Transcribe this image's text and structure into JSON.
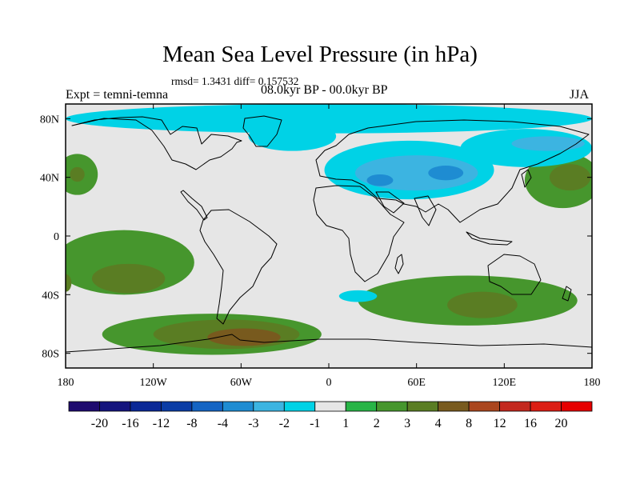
{
  "chart_data": {
    "type": "heatmap",
    "title": "Mean Sea Level Pressure (in hPa)",
    "subtitle": "rmsd= 1.3431 diff= 0.157532",
    "left_label": "Expt = temni-temna",
    "center_label": "08.0kyr BP - 00.0kyr BP",
    "right_label": "JJA",
    "x_ticks": [
      {
        "lon": -180,
        "label": "180"
      },
      {
        "lon": -120,
        "label": "120W"
      },
      {
        "lon": -60,
        "label": "60W"
      },
      {
        "lon": 0,
        "label": "0"
      },
      {
        "lon": 60,
        "label": "60E"
      },
      {
        "lon": 120,
        "label": "120E"
      },
      {
        "lon": 180,
        "label": "180"
      }
    ],
    "y_ticks": [
      {
        "lat": 80,
        "label": "80N"
      },
      {
        "lat": 40,
        "label": "40N"
      },
      {
        "lat": 0,
        "label": "0"
      },
      {
        "lat": -40,
        "label": "40S"
      },
      {
        "lat": -80,
        "label": "80S"
      }
    ],
    "xlim": [
      -180,
      180
    ],
    "ylim": [
      -90,
      90
    ],
    "colorbar": {
      "labels": [
        "-20",
        "-16",
        "-12",
        "-8",
        "-4",
        "-3",
        "-2",
        "-1",
        "1",
        "2",
        "3",
        "4",
        "8",
        "12",
        "16",
        "20"
      ],
      "colors": [
        "#1e0a6e",
        "#14147d",
        "#0a2896",
        "#0a3ca5",
        "#1464c3",
        "#1e8cd2",
        "#3cb4e1",
        "#00d2e6",
        "#e6e6e6",
        "#28b446",
        "#46962d",
        "#5a7d23",
        "#785a1e",
        "#aa461e",
        "#c3281e",
        "#dc1e14",
        "#e60000"
      ]
    },
    "regions": [
      {
        "name": "ne-pacific-high",
        "cls": 2,
        "lon": -172,
        "lat": 42,
        "rx": 14,
        "ry": 14
      },
      {
        "name": "ne-pacific-high-core",
        "cls": 3,
        "lon": -172,
        "lat": 42,
        "rx": 5,
        "ry": 5
      },
      {
        "name": "south-pacific-band",
        "cls": 2,
        "lon": -140,
        "lat": -18,
        "rx": 48,
        "ry": 22
      },
      {
        "name": "south-pacific-core",
        "cls": 3,
        "lon": -137,
        "lat": -29,
        "rx": 25,
        "ry": 10
      },
      {
        "name": "west-pacific-edge",
        "cls": 3,
        "lon": -180,
        "lat": -32,
        "rx": 4,
        "ry": 6
      },
      {
        "name": "southern-ocean-band",
        "cls": 2,
        "lon": -80,
        "lat": -67,
        "rx": 75,
        "ry": 14
      },
      {
        "name": "southern-ocean-core",
        "cls": 3,
        "lon": -70,
        "lat": -67,
        "rx": 50,
        "ry": 10
      },
      {
        "name": "southern-ocean-core-inner",
        "cls": 4,
        "lon": -58,
        "lat": -69,
        "rx": 25,
        "ry": 6
      },
      {
        "name": "indian-ocean-band",
        "cls": 2,
        "lon": 95,
        "lat": -44,
        "rx": 75,
        "ry": 17
      },
      {
        "name": "indian-ocean-core",
        "cls": 3,
        "lon": 105,
        "lat": -47,
        "rx": 24,
        "ry": 9
      },
      {
        "name": "west-pacific-high",
        "cls": 2,
        "lon": 160,
        "lat": 38,
        "rx": 26,
        "ry": 19
      },
      {
        "name": "west-pacific-high-core",
        "cls": 3,
        "lon": 165,
        "lat": 40,
        "rx": 14,
        "ry": 9
      },
      {
        "name": "arctic-low",
        "cls": -1,
        "lon": 0,
        "lat": 80,
        "rx": 180,
        "ry": 10
      },
      {
        "name": "north-atlantic-low",
        "cls": -1,
        "lon": -25,
        "lat": 68,
        "rx": 30,
        "ry": 10
      },
      {
        "name": "eurasia-low",
        "cls": -1,
        "lon": 55,
        "lat": 45,
        "rx": 58,
        "ry": 20
      },
      {
        "name": "eurasia-low-mid",
        "cls": -2,
        "lon": 60,
        "lat": 43,
        "rx": 42,
        "ry": 12
      },
      {
        "name": "eurasia-low-core",
        "cls": -3,
        "lon": 80,
        "lat": 43,
        "rx": 12,
        "ry": 5
      },
      {
        "name": "mediterranean-low-core",
        "cls": -3,
        "lon": 35,
        "lat": 38,
        "rx": 9,
        "ry": 4
      },
      {
        "name": "east-asia-low",
        "cls": -1,
        "lon": 135,
        "lat": 60,
        "rx": 45,
        "ry": 13
      },
      {
        "name": "east-asia-low-core",
        "cls": -2,
        "lon": 150,
        "lat": 63,
        "rx": 25,
        "ry": 5
      },
      {
        "name": "south-atlantic-low",
        "cls": -1,
        "lon": 20,
        "lat": -41,
        "rx": 13,
        "ry": 4
      }
    ]
  }
}
